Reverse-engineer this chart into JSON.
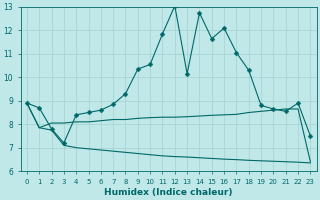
{
  "xlabel": "Humidex (Indice chaleur)",
  "ylabel": "",
  "bg_color": "#c0e8e8",
  "grid_color": "#a8d4d4",
  "line_color": "#006868",
  "xlim": [
    -0.5,
    23.5
  ],
  "ylim": [
    6,
    13
  ],
  "xticks": [
    0,
    1,
    2,
    3,
    4,
    5,
    6,
    7,
    8,
    9,
    10,
    11,
    12,
    13,
    14,
    15,
    16,
    17,
    18,
    19,
    20,
    21,
    22,
    23
  ],
  "yticks": [
    6,
    7,
    8,
    9,
    10,
    11,
    12,
    13
  ],
  "line1_x": [
    0,
    1,
    2,
    3,
    4,
    5,
    6,
    7,
    8,
    9,
    10,
    11,
    12,
    13,
    14,
    15,
    16,
    17,
    18,
    19,
    20,
    21,
    22,
    23
  ],
  "line1_y": [
    8.9,
    8.7,
    7.8,
    7.2,
    8.4,
    8.5,
    8.6,
    8.85,
    9.3,
    10.35,
    10.55,
    11.85,
    13.05,
    10.15,
    12.75,
    11.65,
    12.1,
    11.05,
    10.3,
    8.8,
    8.65,
    8.55,
    8.9,
    7.5
  ],
  "line2_x": [
    0,
    1,
    2,
    3,
    4,
    5,
    6,
    7,
    8,
    9,
    10,
    11,
    12,
    13,
    14,
    15,
    16,
    17,
    18,
    19,
    20,
    21,
    22,
    23
  ],
  "line2_y": [
    8.9,
    7.85,
    8.05,
    8.05,
    8.1,
    8.1,
    8.15,
    8.2,
    8.2,
    8.25,
    8.28,
    8.3,
    8.3,
    8.32,
    8.35,
    8.38,
    8.4,
    8.42,
    8.5,
    8.55,
    8.6,
    8.65,
    8.65,
    6.4
  ],
  "line3_x": [
    0,
    1,
    2,
    3,
    4,
    5,
    6,
    7,
    8,
    9,
    10,
    11,
    12,
    13,
    14,
    15,
    16,
    17,
    18,
    19,
    20,
    21,
    22,
    23
  ],
  "line3_y": [
    8.9,
    7.85,
    7.75,
    7.1,
    7.0,
    6.95,
    6.9,
    6.85,
    6.8,
    6.75,
    6.7,
    6.65,
    6.62,
    6.6,
    6.57,
    6.54,
    6.51,
    6.49,
    6.46,
    6.44,
    6.42,
    6.4,
    6.38,
    6.35
  ]
}
